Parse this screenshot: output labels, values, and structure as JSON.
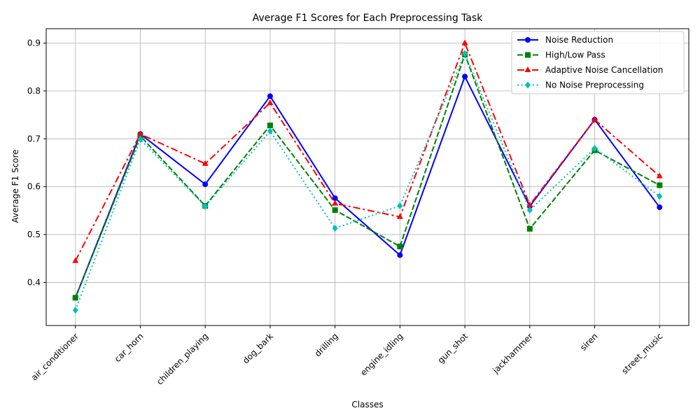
{
  "chart_data": {
    "type": "line",
    "title": "Average F1 Scores for Each Preprocessing Task",
    "xlabel": "Classes",
    "ylabel": "Average F1 Score",
    "categories": [
      "air_conditioner",
      "car_horn",
      "children_playing",
      "dog_bark",
      "drilling",
      "engine_idling",
      "gun_shot",
      "jackhammer",
      "siren",
      "street_music"
    ],
    "yticks": [
      0.4,
      0.5,
      0.6,
      0.7,
      0.8,
      0.9
    ],
    "ytick_labels": [
      "0.4",
      "0.5",
      "0.6",
      "0.7",
      "0.8",
      "0.9"
    ],
    "ylim": [
      0.31,
      0.93
    ],
    "grid": true,
    "legend_position": "top-right",
    "series": [
      {
        "name": "Noise Reduction",
        "color": "#0000ff",
        "linestyle": "solid",
        "marker": "circle",
        "values": [
          0.368,
          0.71,
          0.605,
          0.789,
          0.576,
          0.457,
          0.83,
          0.559,
          0.74,
          0.557
        ]
      },
      {
        "name": "High/Low Pass",
        "color": "#008000",
        "linestyle": "dashed",
        "marker": "square",
        "values": [
          0.368,
          0.706,
          0.56,
          0.728,
          0.551,
          0.475,
          0.876,
          0.512,
          0.676,
          0.603
        ]
      },
      {
        "name": "Adaptive Noise Cancellation",
        "color": "#ff0000",
        "linestyle": "dashdot",
        "marker": "triangle",
        "values": [
          0.445,
          0.71,
          0.648,
          0.775,
          0.565,
          0.537,
          0.9,
          0.562,
          0.74,
          0.622
        ]
      },
      {
        "name": "No Noise Preprocessing",
        "color": "#00bfbf",
        "linestyle": "dotted",
        "marker": "diamond",
        "values": [
          0.342,
          0.699,
          0.559,
          0.716,
          0.513,
          0.56,
          0.878,
          0.551,
          0.68,
          0.58
        ]
      }
    ]
  }
}
